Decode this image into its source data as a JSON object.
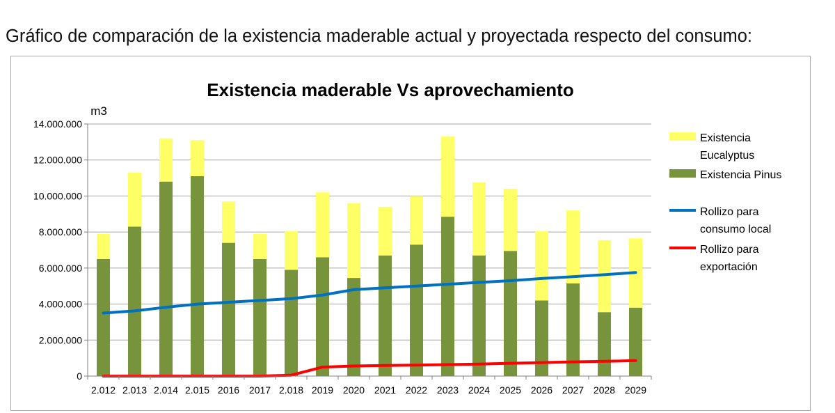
{
  "page": {
    "heading": "Gráfico de comparación de la existencia maderable actual y proyectada respecto del consumo:"
  },
  "chart_data": {
    "type": "bar",
    "title": "Existencia maderable Vs aprovechamiento",
    "xlabel": "",
    "ylabel": "m3",
    "ylim": [
      0,
      14000000
    ],
    "yticks": [
      0,
      2000000,
      4000000,
      6000000,
      8000000,
      10000000,
      12000000,
      14000000
    ],
    "ytick_labels": [
      "0",
      "2.000.000",
      "4.000.000",
      "6.000.000",
      "8.000.000",
      "10.000.000",
      "12.000.000",
      "14.000.000"
    ],
    "grid": true,
    "legend_position": "right",
    "categories": [
      "2.012",
      "2.013",
      "2.014",
      "2.015",
      "2016",
      "2017",
      "2.018",
      "2019",
      "2020",
      "2021",
      "2022",
      "2023",
      "2024",
      "2025",
      "2026",
      "2027",
      "2028",
      "2029"
    ],
    "series": [
      {
        "name": "Existencia Pinus",
        "kind": "stacked-bar",
        "color": "#77933c",
        "values": [
          6500000,
          8300000,
          10800000,
          11100000,
          7400000,
          6500000,
          5900000,
          6600000,
          5450000,
          6700000,
          7300000,
          8850000,
          6700000,
          6950000,
          4200000,
          5150000,
          3550000,
          3800000
        ]
      },
      {
        "name": "Existencia Eucalyptus",
        "kind": "stacked-bar",
        "color": "#ffff66",
        "values": [
          1400000,
          3000000,
          2400000,
          2000000,
          2300000,
          1400000,
          2150000,
          3600000,
          4150000,
          2700000,
          2700000,
          4450000,
          4050000,
          3450000,
          3850000,
          4050000,
          4000000,
          3850000
        ]
      },
      {
        "name": "Rollizo para consumo local",
        "kind": "line",
        "color": "#0070c0",
        "values": [
          3500000,
          3620000,
          3820000,
          4000000,
          4100000,
          4200000,
          4300000,
          4500000,
          4800000,
          4900000,
          5000000,
          5100000,
          5200000,
          5300000,
          5420000,
          5520000,
          5630000,
          5750000
        ]
      },
      {
        "name": "Rollizo para exportación",
        "kind": "line",
        "color": "#ff0000",
        "values": [
          0,
          0,
          0,
          0,
          0,
          0,
          50000,
          500000,
          560000,
          590000,
          610000,
          640000,
          670000,
          710000,
          750000,
          790000,
          820000,
          860000
        ]
      }
    ],
    "legend": [
      {
        "label_lines": [
          "Existencia",
          "Eucalyptus"
        ],
        "color": "#ffff66",
        "marker": "box"
      },
      {
        "label_lines": [
          "Existencia Pinus"
        ],
        "color": "#77933c",
        "marker": "box"
      },
      {
        "label_lines": [
          "Rollizo para",
          "consumo local"
        ],
        "color": "#0070c0",
        "marker": "line"
      },
      {
        "label_lines": [
          "Rollizo para",
          "exportación"
        ],
        "color": "#ff0000",
        "marker": "line"
      }
    ]
  }
}
